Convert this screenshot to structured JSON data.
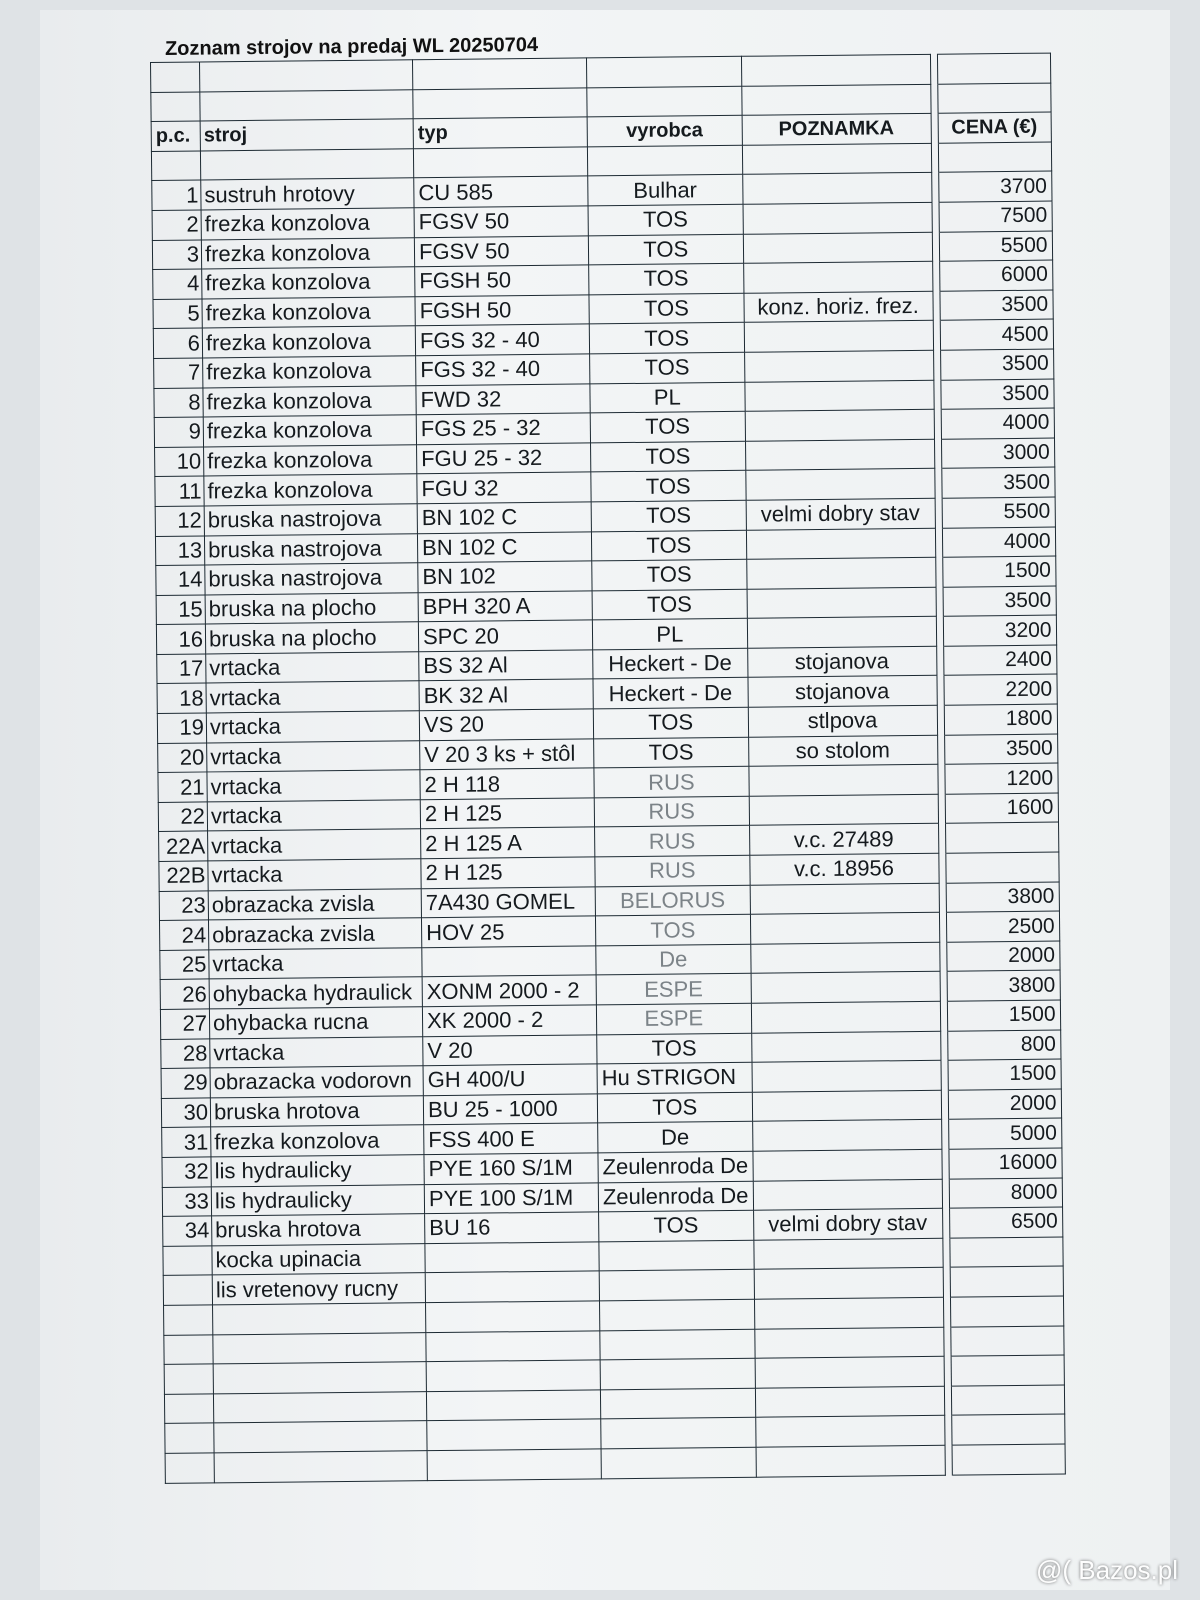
{
  "title": "Zoznam strojov  na predaj  WL 20250704",
  "headers": {
    "pc": "p.c.",
    "stroj": "stroj",
    "typ": "typ",
    "vyrobca": "vyrobca",
    "poznamka": "POZNAMKA",
    "cena": "CENA (€)"
  },
  "rows": [
    {
      "pc": "1",
      "stroj": "sustruh hrotovy",
      "typ": "CU 585",
      "vyrobca": "Bulhar",
      "poznamka": "",
      "cena": "3700"
    },
    {
      "pc": "2",
      "stroj": "frezka konzolova",
      "typ": "FGSV 50",
      "vyrobca": "TOS",
      "poznamka": "",
      "cena": "7500"
    },
    {
      "pc": "3",
      "stroj": "frezka konzolova",
      "typ": "FGSV 50",
      "vyrobca": "TOS",
      "poznamka": "",
      "cena": "5500"
    },
    {
      "pc": "4",
      "stroj": "frezka konzolova",
      "typ": "FGSH 50",
      "vyrobca": "TOS",
      "poznamka": "",
      "cena": "6000"
    },
    {
      "pc": "5",
      "stroj": "frezka konzolova",
      "typ": "FGSH 50",
      "vyrobca": "TOS",
      "poznamka": "konz. horiz. frez.",
      "cena": "3500"
    },
    {
      "pc": "6",
      "stroj": "frezka konzolova",
      "typ": "FGS 32 - 40",
      "vyrobca": "TOS",
      "poznamka": "",
      "cena": "4500"
    },
    {
      "pc": "7",
      "stroj": "frezka konzolova",
      "typ": "FGS 32 - 40",
      "vyrobca": "TOS",
      "poznamka": "",
      "cena": "3500"
    },
    {
      "pc": "8",
      "stroj": "frezka konzolova",
      "typ": "FWD 32",
      "vyrobca": "PL",
      "poznamka": "",
      "cena": "3500"
    },
    {
      "pc": "9",
      "stroj": "frezka konzolova",
      "typ": "FGS 25 - 32",
      "vyrobca": "TOS",
      "poznamka": "",
      "cena": "4000"
    },
    {
      "pc": "10",
      "stroj": "frezka konzolova",
      "typ": "FGU 25 - 32",
      "vyrobca": "TOS",
      "poznamka": "",
      "cena": "3000"
    },
    {
      "pc": "11",
      "stroj": "frezka konzolova",
      "typ": "FGU 32",
      "vyrobca": "TOS",
      "poznamka": "",
      "cena": "3500"
    },
    {
      "pc": "12",
      "stroj": "bruska nastrojova",
      "typ": "BN 102 C",
      "vyrobca": "TOS",
      "poznamka": "velmi dobry stav",
      "cena": "5500"
    },
    {
      "pc": "13",
      "stroj": "bruska nastrojova",
      "typ": "BN 102 C",
      "vyrobca": "TOS",
      "poznamka": "",
      "cena": "4000"
    },
    {
      "pc": "14",
      "stroj": "bruska nastrojova",
      "typ": "BN 102",
      "vyrobca": "TOS",
      "poznamka": "",
      "cena": "1500"
    },
    {
      "pc": "15",
      "stroj": "bruska na plocho",
      "typ": "BPH 320 A",
      "vyrobca": "TOS",
      "poznamka": "",
      "cena": "3500"
    },
    {
      "pc": "16",
      "stroj": "bruska na plocho",
      "typ": "SPC 20",
      "vyrobca": "PL",
      "poznamka": "",
      "cena": "3200"
    },
    {
      "pc": "17",
      "stroj": "vrtacka",
      "typ": "BS 32 Al",
      "vyrobca": "Heckert - De",
      "poznamka": "stojanova",
      "cena": "2400"
    },
    {
      "pc": "18",
      "stroj": "vrtacka",
      "typ": "BK 32 Al",
      "vyrobca": "Heckert - De",
      "poznamka": "stojanova",
      "cena": "2200"
    },
    {
      "pc": "19",
      "stroj": "vrtacka",
      "typ": "VS 20",
      "vyrobca": "TOS",
      "poznamka": "stlpova",
      "cena": "1800"
    },
    {
      "pc": "20",
      "stroj": "vrtacka",
      "typ": "V 20 3 ks + stôl",
      "vyrobca": "TOS",
      "poznamka": "so stolom",
      "cena": "3500"
    },
    {
      "pc": "21",
      "stroj": "vrtacka",
      "typ": "2 H 118",
      "vyrobca": "RUS",
      "poznamka": "",
      "cena": "1200",
      "faded": true
    },
    {
      "pc": "22",
      "stroj": "vrtacka",
      "typ": "2 H 125",
      "vyrobca": "RUS",
      "poznamka": "",
      "cena": "1600",
      "faded": true
    },
    {
      "pc": "22A",
      "stroj": "vrtacka",
      "typ": "2 H 125 A",
      "vyrobca": "RUS",
      "poznamka": "v.c. 27489",
      "cena": "",
      "faded": true
    },
    {
      "pc": "22B",
      "stroj": "vrtacka",
      "typ": "2 H 125",
      "vyrobca": "RUS",
      "poznamka": "v.c. 18956",
      "cena": "",
      "faded": true
    },
    {
      "pc": "23",
      "stroj": "obrazacka zvisla",
      "typ": "7A430 GOMEL",
      "vyrobca": "BELORUS",
      "poznamka": "",
      "cena": "3800",
      "faded": true
    },
    {
      "pc": "24",
      "stroj": "obrazacka zvisla",
      "typ": "HOV 25",
      "vyrobca": "TOS",
      "poznamka": "",
      "cena": "2500",
      "faded": true
    },
    {
      "pc": "25",
      "stroj": "vrtacka",
      "typ": "",
      "vyrobca": "De",
      "poznamka": "",
      "cena": "2000",
      "faded": true
    },
    {
      "pc": "26",
      "stroj": "ohybacka hydraulick",
      "typ": "XONM 2000 - 2",
      "vyrobca": "ESPE",
      "poznamka": "",
      "cena": "3800",
      "faded": true
    },
    {
      "pc": "27",
      "stroj": "ohybacka rucna",
      "typ": "XK 2000 - 2",
      "vyrobca": "ESPE",
      "poznamka": "",
      "cena": "1500",
      "faded": true
    },
    {
      "pc": "28",
      "stroj": "vrtacka",
      "typ": "V 20",
      "vyrobca": "TOS",
      "poznamka": "",
      "cena": "800"
    },
    {
      "pc": "29",
      "stroj": "obrazacka vodorovn",
      "typ": "GH 400/U",
      "vyrobca": "Hu     STRIGON",
      "poznamka": "",
      "cena": "1500",
      "left": true
    },
    {
      "pc": "30",
      "stroj": "bruska hrotova",
      "typ": "BU 25 - 1000",
      "vyrobca": "TOS",
      "poznamka": "",
      "cena": "2000"
    },
    {
      "pc": "31",
      "stroj": "frezka konzolova",
      "typ": "FSS 400 E",
      "vyrobca": "De",
      "poznamka": "",
      "cena": "5000"
    },
    {
      "pc": "32",
      "stroj": "lis hydraulicky",
      "typ": "PYE 160 S/1M",
      "vyrobca": "Zeulenroda De",
      "poznamka": "",
      "cena": "16000",
      "left": true
    },
    {
      "pc": "33",
      "stroj": "lis hydraulicky",
      "typ": "PYE 100 S/1M",
      "vyrobca": "Zeulenroda De",
      "poznamka": "",
      "cena": "8000",
      "left": true
    },
    {
      "pc": "34",
      "stroj": "bruska hrotova",
      "typ": "BU 16",
      "vyrobca": "TOS",
      "poznamka": "velmi dobry stav",
      "cena": "6500"
    },
    {
      "pc": "",
      "stroj": "kocka upinacia",
      "typ": "",
      "vyrobca": "",
      "poznamka": "",
      "cena": ""
    },
    {
      "pc": "",
      "stroj": "lis vretenovy rucny",
      "typ": "",
      "vyrobca": "",
      "poznamka": "",
      "cena": ""
    }
  ],
  "blank_rows": 6,
  "watermark": "@( Bazos.pl"
}
